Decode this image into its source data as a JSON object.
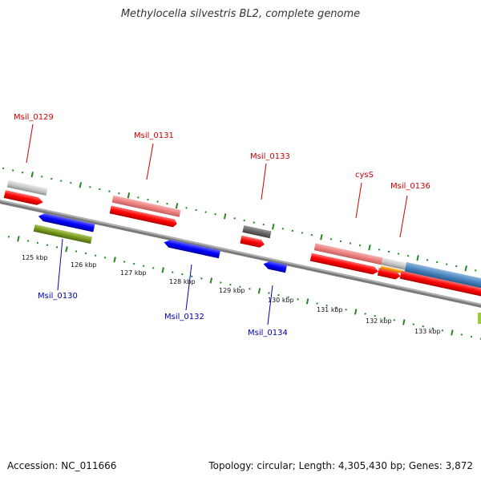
{
  "title": "Methylocella silvestris BL2, complete genome",
  "footer": {
    "accession": "Accession: NC_011666",
    "summary": "Topology: circular; Length: 4,305,430 bp; Genes: 3,872"
  },
  "scale_labels": [
    "125 kbp",
    "126 kbp",
    "127 kbp",
    "128 kbp",
    "129 kbp",
    "130 kbp",
    "131 kbp",
    "132 kbp",
    "133 kbp"
  ],
  "gene_labels_top": [
    "Msil_0129",
    "Msil_0131",
    "Msil_0133",
    "cysS",
    "Msil_0136"
  ],
  "gene_labels_bottom": [
    "Msil_0130",
    "Msil_0132",
    "Msil_0134"
  ],
  "colors": {
    "forward_label": "#cc0000",
    "reverse_label": "#0000aa",
    "forward_cds": "#ff0000",
    "reverse_cds": "#0000ff",
    "tick": "#228822",
    "backbone": "#888888"
  }
}
